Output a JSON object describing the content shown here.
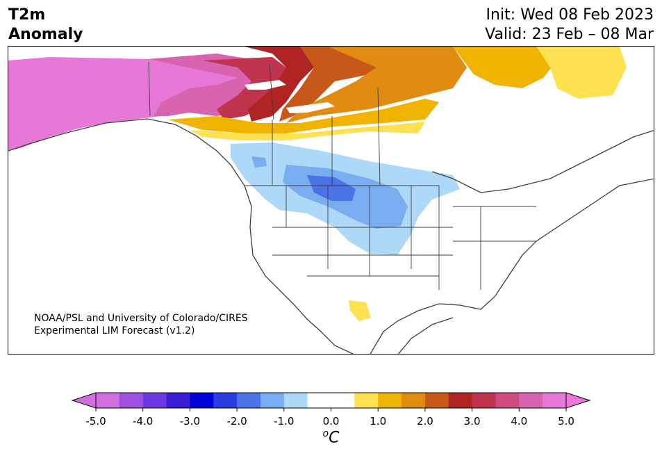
{
  "header": {
    "title_line1": "T2m",
    "title_line2": "Anomaly",
    "init": "Init: Wed 08 Feb 2023",
    "valid": "Valid: 23 Feb – 08 Mar"
  },
  "map": {
    "region": "North America",
    "credit_line1": "NOAA/PSL and University of Colorado/CIRES",
    "credit_line2": "Experimental LIM Forecast (v1.2)"
  },
  "colorbar": {
    "tick_labels": [
      "-5.0",
      "-4.0",
      "-3.0",
      "-2.0",
      "-1.0",
      "0.0",
      "1.0",
      "2.0",
      "3.0",
      "4.0",
      "5.0"
    ],
    "unit_label": "C",
    "unit_prefix": "o",
    "colors": [
      "#d070e0",
      "#a050e0",
      "#6a3ae0",
      "#3a1ed8",
      "#0000d8",
      "#2a3ee0",
      "#4c72e8",
      "#78aef0",
      "#aed8f8",
      "#ffffff",
      "#ffffff",
      "#ffe050",
      "#f0b400",
      "#e08c10",
      "#c85818",
      "#b02424",
      "#c03450",
      "#d04c80",
      "#d864b0",
      "#e878d8"
    ]
  },
  "legend_colors": {
    "land": "#ffffff",
    "ocean": "#ffffff",
    "border": "#3c3c3c"
  }
}
